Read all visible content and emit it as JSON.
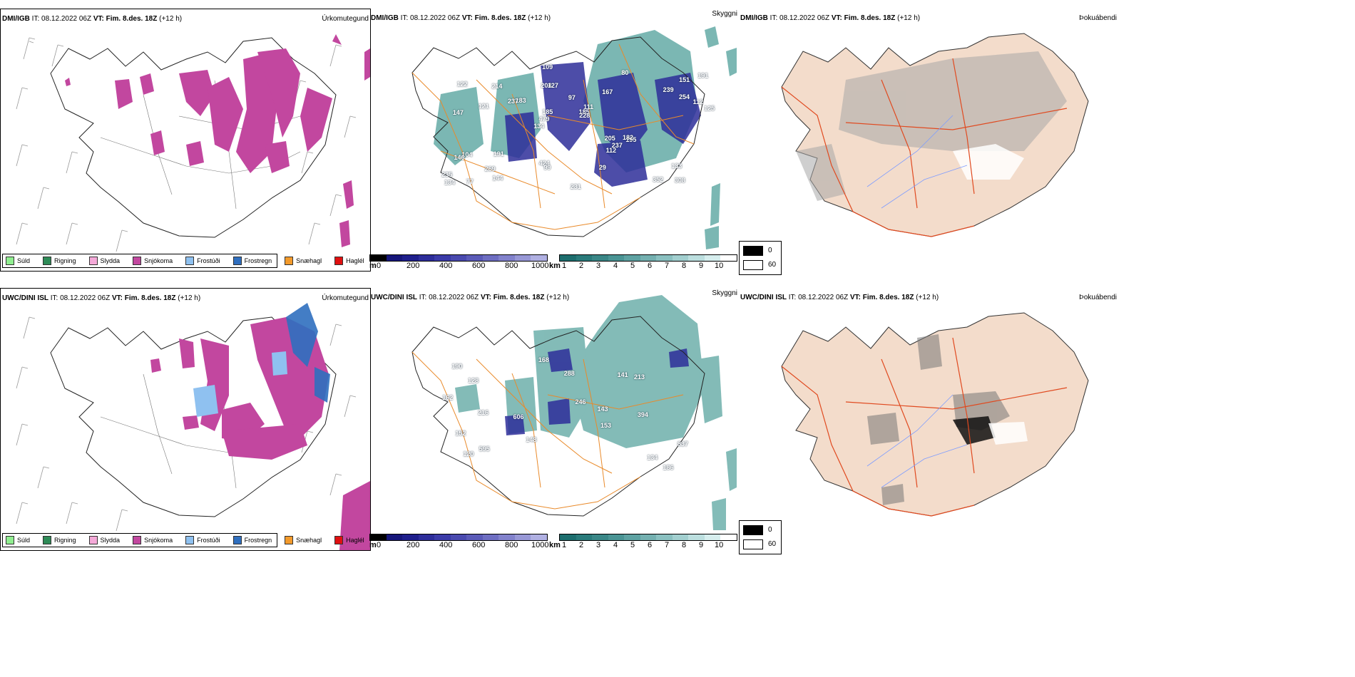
{
  "rows": [
    {
      "model": "DMI/IGB",
      "it_label": "IT:",
      "it_value": "08.12.2022 06Z",
      "vt_label": "VT: Fim. 8.des. 18Z",
      "lead": "(+12 h)"
    },
    {
      "model": "UWC/DINI ISL",
      "it_label": "IT:",
      "it_value": "08.12.2022 06Z",
      "vt_label": "VT: Fim. 8.des. 18Z",
      "lead": "(+12 h)"
    }
  ],
  "panels": {
    "precip_type": "Úrkomutegund",
    "visibility": "Skyggni",
    "fog": "Þokuábendi"
  },
  "precip_legend": [
    {
      "label": "Súld",
      "color": "#90ee90"
    },
    {
      "label": "Rigning",
      "color": "#2e8b57"
    },
    {
      "label": "Slydda",
      "color": "#f4a9d8"
    },
    {
      "label": "Snjókoma",
      "color": "#c2479f"
    },
    {
      "label": "Frostúði",
      "color": "#8fc1f0"
    },
    {
      "label": "Frostregn",
      "color": "#2f6fbf"
    },
    {
      "label": "Snæhagl",
      "color": "#f39a2b"
    },
    {
      "label": "Haglél",
      "color": "#e01010"
    }
  ],
  "m_scale": {
    "unit": "m",
    "ticks": [
      "0",
      "200",
      "400",
      "600",
      "800",
      "1000"
    ],
    "colors": [
      "#000000",
      "#16167a",
      "#1f1f8c",
      "#2d2d9a",
      "#3b3ba8",
      "#4a4aaf",
      "#5b5bb8",
      "#6e6ec2",
      "#8282cc",
      "#9898d6",
      "#b0b0e2"
    ]
  },
  "km_scale": {
    "unit": "km",
    "ticks": [
      "1",
      "2",
      "3",
      "4",
      "5",
      "6",
      "7",
      "8",
      "9",
      "10"
    ],
    "colors": [
      "#1d6e6e",
      "#2a7b7b",
      "#3a8787",
      "#4a9494",
      "#5ea2a2",
      "#74b0b0",
      "#8ac0c0",
      "#a2cfcf",
      "#bcdfdf",
      "#d6eeee",
      "#ffffff"
    ]
  },
  "fog_legend": {
    "dark_label": "0",
    "light_label": "60"
  },
  "visibility_numbers": [
    [
      "308",
      "147",
      "151",
      "134",
      "167",
      "77",
      "204",
      "97",
      "104",
      "183",
      "235",
      "269",
      "127",
      "111",
      "195",
      "122",
      "109",
      "125",
      "205",
      "254",
      "479",
      "424",
      "185",
      "214",
      "80",
      "191",
      "352",
      "133",
      "182",
      "231",
      "237",
      "121",
      "112",
      "144",
      "112",
      "185",
      "134",
      "99",
      "228",
      "146",
      "239",
      "191",
      "237",
      "29"
    ],
    [
      "186",
      "216",
      "153",
      "190",
      "837",
      "128",
      "595",
      "606",
      "213",
      "288",
      "141",
      "134",
      "148",
      "168",
      "143",
      "152",
      "394",
      "246",
      "162",
      "120"
    ]
  ]
}
